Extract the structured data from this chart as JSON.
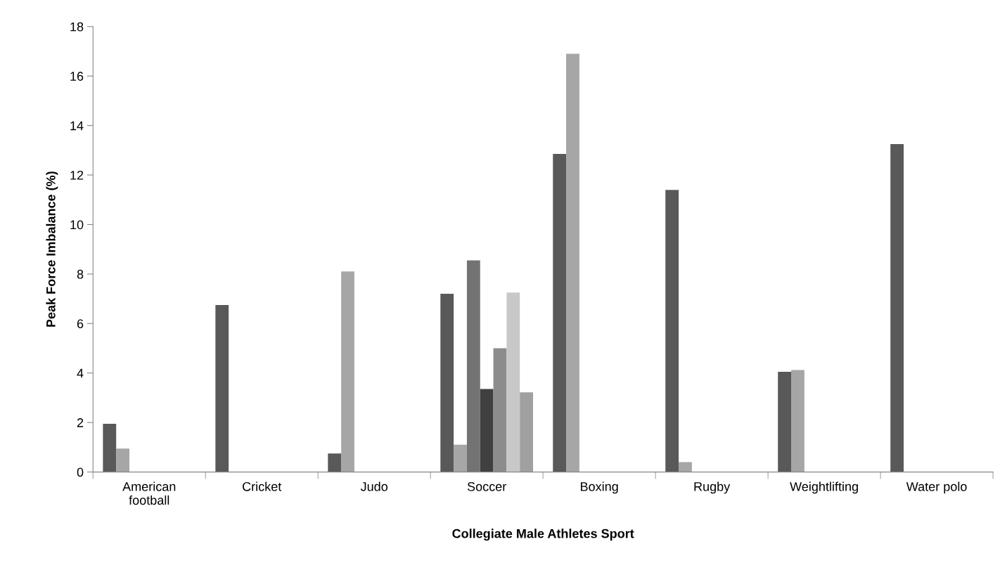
{
  "chart_data": {
    "type": "bar",
    "xlabel": "Collegiate Male Athletes Sport",
    "ylabel": "Peak Force Imbalance (%)",
    "categories": [
      "American\nfootball",
      "Cricket",
      "Judo",
      "Soccer",
      "Boxing",
      "Rugby",
      "Weightlifting",
      "Water polo"
    ],
    "series": [
      {
        "color": "#595959",
        "values": [
          1.95,
          6.75,
          0.75,
          7.2,
          12.85,
          11.4,
          4.05,
          13.25
        ]
      },
      {
        "color": "#a6a6a6",
        "values": [
          0.95,
          null,
          8.1,
          1.1,
          16.9,
          0.4,
          4.12,
          null
        ]
      },
      {
        "color": "#737373",
        "values": [
          null,
          null,
          null,
          8.55,
          null,
          null,
          null,
          null
        ]
      },
      {
        "color": "#404040",
        "values": [
          null,
          null,
          null,
          3.35,
          null,
          null,
          null,
          null
        ]
      },
      {
        "color": "#8c8c8c",
        "values": [
          null,
          null,
          null,
          5.0,
          null,
          null,
          null,
          null
        ]
      },
      {
        "color": "#c8c8c8",
        "values": [
          null,
          null,
          null,
          7.25,
          null,
          null,
          null,
          null
        ]
      },
      {
        "color": "#a0a0a0",
        "values": [
          null,
          null,
          null,
          3.22,
          null,
          null,
          null,
          null
        ]
      }
    ],
    "ylim": [
      0,
      18
    ],
    "yticks": [
      0,
      2,
      4,
      6,
      8,
      10,
      12,
      14,
      16,
      18
    ],
    "grid": false,
    "legend": false
  }
}
